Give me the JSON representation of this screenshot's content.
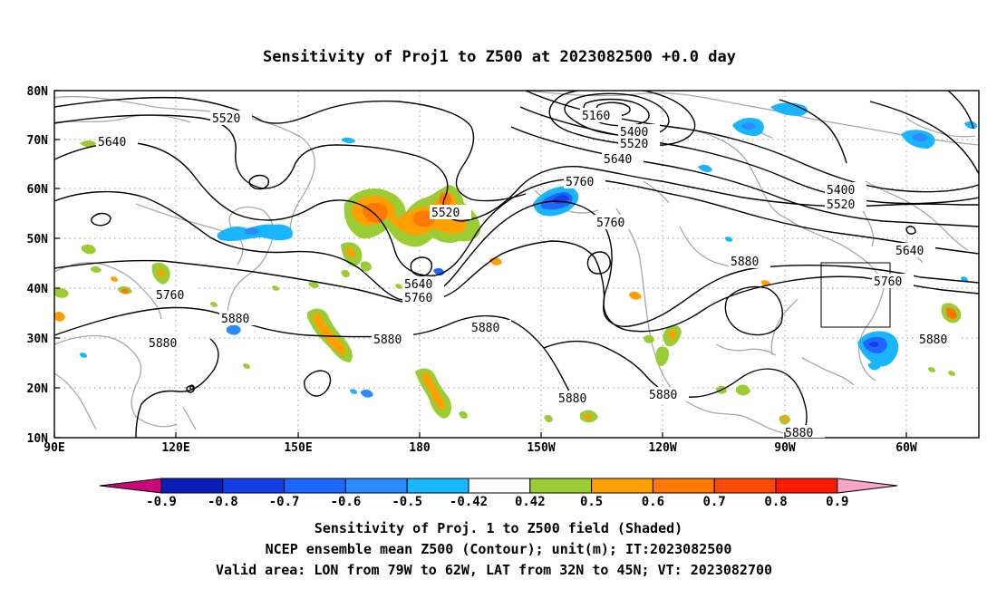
{
  "title": "Sensitivity of Proj1 to Z500 at 2023082500 +0.0 day",
  "chart_data": {
    "type": "map",
    "lon_range": [
      "90E",
      "300E (60W)+"
    ],
    "lat_range": [
      "10N",
      "80N"
    ],
    "x_ticks": [
      "90E",
      "120E",
      "150E",
      "180",
      "150W",
      "120W",
      "90W",
      "60W"
    ],
    "y_ticks": [
      "10N",
      "20N",
      "30N",
      "40N",
      "50N",
      "60N",
      "70N",
      "80N"
    ],
    "grid": true,
    "shading": {
      "variable": "Sensitivity of Proj. 1 to Z500",
      "levels": [
        "-0.9",
        "-0.8",
        "-0.7",
        "-0.6",
        "-0.5",
        "-0.42",
        "0.42",
        "0.5",
        "0.6",
        "0.7",
        "0.8",
        "0.9"
      ],
      "colors": [
        "#c8087a",
        "#0a1fb5",
        "#1440e6",
        "#1f66ff",
        "#2b8cff",
        "#19b6ff",
        "#ffffff",
        "#9ccc34",
        "#ffa000",
        "#ff7800",
        "#ff4a00",
        "#ff1a00",
        "#f7a6c8"
      ]
    },
    "contours": {
      "variable": "NCEP ensemble mean Z500",
      "unit": "m",
      "labels": [
        "5520",
        "5640",
        "5160",
        "5400",
        "5520",
        "5640",
        "5760",
        "5760",
        "5400",
        "5520",
        "5640",
        "5760",
        "5880",
        "5760",
        "5880",
        "5880",
        "5640",
        "5760",
        "5880",
        "5880",
        "5880",
        "5880",
        "5880",
        "5880",
        "5520"
      ]
    },
    "valid_box": {
      "lon": [
        "79W",
        "62W"
      ],
      "lat": [
        "32N",
        "45N"
      ]
    }
  },
  "footer": {
    "line1": "Sensitivity of Proj. 1 to Z500 field (Shaded)",
    "line2": "NCEP ensemble mean Z500 (Contour); unit(m); IT:2023082500",
    "line3": "Valid area: LON from 79W to 62W, LAT from 32N to 45N; VT: 2023082700"
  }
}
